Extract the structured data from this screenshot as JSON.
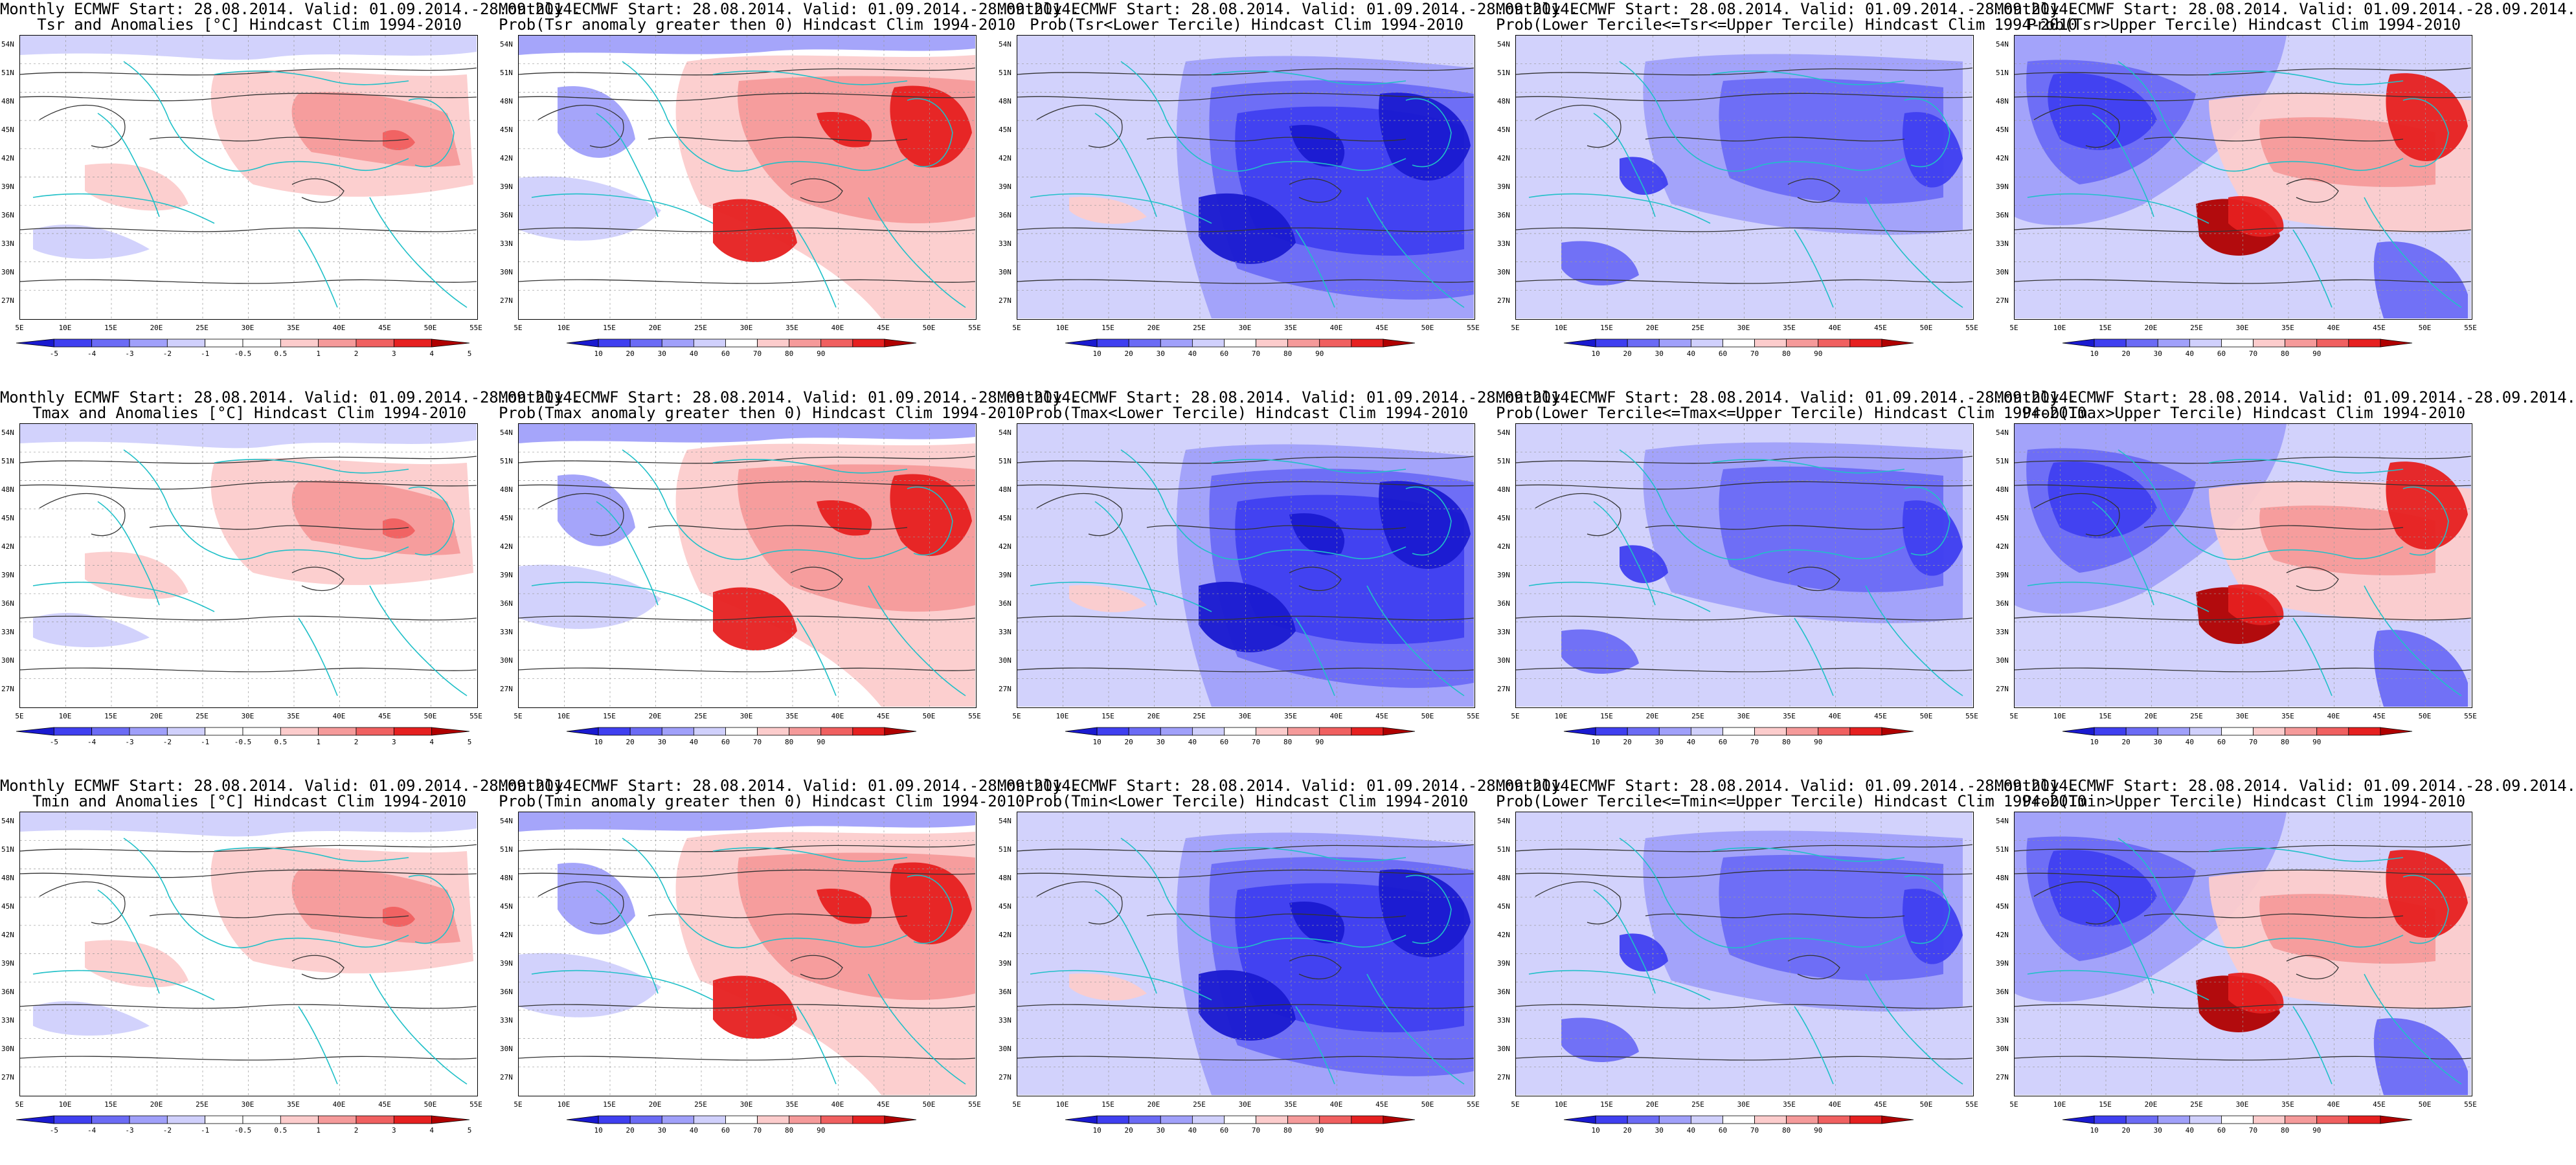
{
  "colors": {
    "deep_blue": "#1a1ad0",
    "blue": "#3f3ff0",
    "mid_blue": "#6b6bf5",
    "light_blue": "#a0a0fa",
    "pale_blue": "#d0d0fc",
    "pale_red": "#fccccc",
    "light_red": "#f59a9a",
    "mid_red": "#f06060",
    "red": "#e62020",
    "dark_red": "#b00000",
    "coast": "#20c0c8",
    "contour": "#333333"
  },
  "axes": {
    "lat_labels": [
      "54N",
      "51N",
      "48N",
      "45N",
      "42N",
      "39N",
      "36N",
      "33N",
      "30N",
      "27N"
    ],
    "lon_labels": [
      "5E",
      "10E",
      "15E",
      "20E",
      "25E",
      "30E",
      "35E",
      "40E",
      "45E",
      "50E",
      "55E"
    ]
  },
  "scales": {
    "anomaly_ticks": [
      "-5",
      "-4",
      "-3",
      "-2",
      "-1",
      "-0.5",
      "0.5",
      "1",
      "2",
      "3",
      "4",
      "5"
    ],
    "prob_ticks": [
      "10",
      "20",
      "30",
      "40",
      "60",
      "70",
      "80",
      "90"
    ]
  },
  "panels": [
    {
      "title1": "Monthly ECMWF Start: 28.08.2014. Valid: 01.09.2014.-28.09.2014.",
      "title2": "Tsr and Anomalies [°C] Hindcast Clim 1994-2010",
      "kind": "anom",
      "scheme": "a"
    },
    {
      "title1": "Monthly ECMWF Start: 28.08.2014. Valid: 01.09.2014.-28.09.2014.",
      "title2": "Prob(Tsr anomaly greater then 0) Hindcast Clim 1994-2010",
      "kind": "prob",
      "scheme": "g"
    },
    {
      "title1": "Monthly ECMWF Start: 28.08.2014. Valid: 01.09.2014.-28.09.2014.",
      "title2": "Prob(Tsr<Lower Tercile) Hindcast Clim 1994-2010",
      "kind": "prob",
      "scheme": "l"
    },
    {
      "title1": "Monthly ECMWF Start: 28.08.2014. Valid: 01.09.2014.-28.09.2014.",
      "title2": "Prob(Lower Tercile<=Tsr<=Upper Tercile) Hindcast Clim 1994-2010",
      "kind": "prob",
      "scheme": "m"
    },
    {
      "title1": "Monthly ECMWF Start: 28.08.2014. Valid: 01.09.2014.-28.09.2014.",
      "title2": "Prob(Tsr>Upper Tercile) Hindcast Clim 1994-2010",
      "kind": "prob",
      "scheme": "u"
    },
    {
      "title1": "Monthly ECMWF Start: 28.08.2014. Valid: 01.09.2014.-28.09.2014.",
      "title2": "Tmax and Anomalies [°C] Hindcast Clim 1994-2010",
      "kind": "anom",
      "scheme": "a"
    },
    {
      "title1": "Monthly ECMWF Start: 28.08.2014. Valid: 01.09.2014.-28.09.2014.",
      "title2": "Prob(Tmax anomaly greater then 0) Hindcast Clim 1994-2010",
      "kind": "prob",
      "scheme": "g"
    },
    {
      "title1": "Monthly ECMWF Start: 28.08.2014. Valid: 01.09.2014.-28.09.2014.",
      "title2": "Prob(Tmax<Lower Tercile) Hindcast Clim 1994-2010",
      "kind": "prob",
      "scheme": "l"
    },
    {
      "title1": "Monthly ECMWF Start: 28.08.2014. Valid: 01.09.2014.-28.09.2014.",
      "title2": "Prob(Lower Tercile<=Tmax<=Upper Tercile) Hindcast Clim 1994-2010",
      "kind": "prob",
      "scheme": "m"
    },
    {
      "title1": "Monthly ECMWF Start: 28.08.2014. Valid: 01.09.2014.-28.09.2014.",
      "title2": "Prob(Tmax>Upper Tercile) Hindcast Clim 1994-2010",
      "kind": "prob",
      "scheme": "u"
    },
    {
      "title1": "Monthly ECMWF Start: 28.08.2014. Valid: 01.09.2014.-28.09.2014.",
      "title2": "Tmin and Anomalies [°C] Hindcast Clim 1994-2010",
      "kind": "anom",
      "scheme": "a"
    },
    {
      "title1": "Monthly ECMWF Start: 28.08.2014. Valid: 01.09.2014.-28.09.2014.",
      "title2": "Prob(Tmin anomaly greater then 0) Hindcast Clim 1994-2010",
      "kind": "prob",
      "scheme": "g"
    },
    {
      "title1": "Monthly ECMWF Start: 28.08.2014. Valid: 01.09.2014.-28.09.2014.",
      "title2": "Prob(Tmin<Lower Tercile) Hindcast Clim 1994-2010",
      "kind": "prob",
      "scheme": "l"
    },
    {
      "title1": "Monthly ECMWF Start: 28.08.2014. Valid: 01.09.2014.-28.09.2014.",
      "title2": "Prob(Lower Tercile<=Tmin<=Upper Tercile) Hindcast Clim 1994-2010",
      "kind": "prob",
      "scheme": "m"
    },
    {
      "title1": "Monthly ECMWF Start: 28.08.2014. Valid: 01.09.2014.-28.09.2014.",
      "title2": "Prob(Tmin>Upper Tercile) Hindcast Clim 1994-2010",
      "kind": "prob",
      "scheme": "u"
    }
  ]
}
